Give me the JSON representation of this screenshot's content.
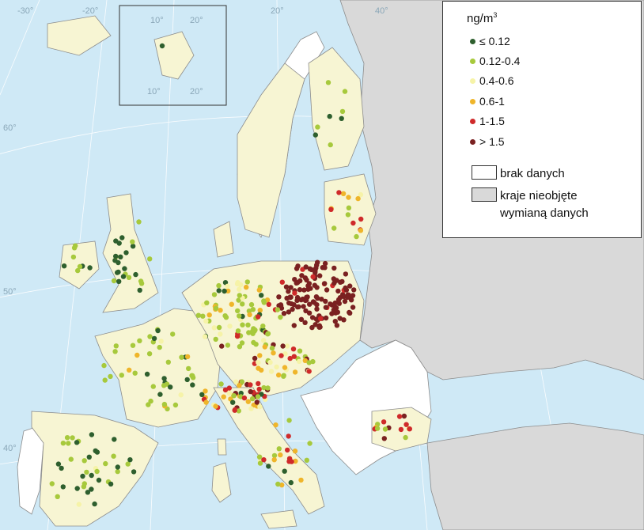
{
  "legend": {
    "unit_text": "ng/m",
    "unit_sup": "3",
    "classes": [
      {
        "label": "≤ 0.12",
        "color": "#2e5f2e"
      },
      {
        "label": "0.12-0.4",
        "color": "#a7c93c"
      },
      {
        "label": "0.4-0.6",
        "color": "#f6f3a8"
      },
      {
        "label": "0.6-1",
        "color": "#efb52a"
      },
      {
        "label": "1-1.5",
        "color": "#cf2a2a"
      },
      {
        "label": "> 1.5",
        "color": "#7a2121"
      }
    ],
    "no_data_label": "brak danych",
    "no_data_color": "#ffffff",
    "excluded_label_1": "kraje nieobjęte",
    "excluded_label_2": "wymianą danych",
    "excluded_color": "#d9d9d9"
  },
  "grid_labels": {
    "lon_m30": "-30°",
    "lon_m20": "-20°",
    "lon_20": "20°",
    "lon_40": "40°",
    "lat_60": "60°",
    "lat_50": "50°",
    "lat_40": "40°",
    "inset_10a": "10°",
    "inset_20a": "20°",
    "inset_10b": "10°",
    "inset_20b": "20°"
  },
  "colors": {
    "sea": "#cfe9f6",
    "eu_land": "#f7f5d3",
    "excluded_land": "#d9d9d9",
    "no_data_land": "#ffffff",
    "border": "#8c8c8c"
  }
}
